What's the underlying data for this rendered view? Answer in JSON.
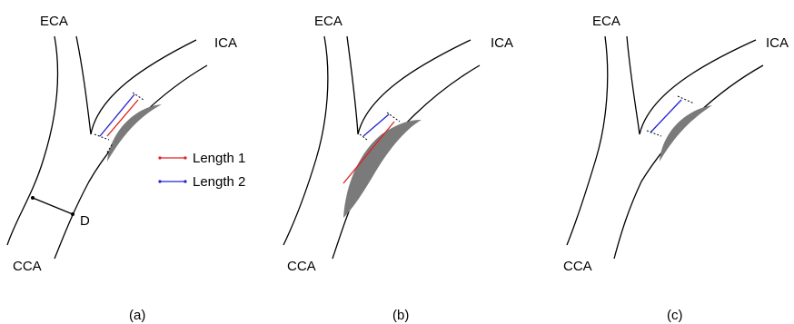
{
  "panels": [
    {
      "caption": "(a)",
      "labels": {
        "eca": "ECA",
        "ica": "ICA",
        "cca": "CCA",
        "d": "D"
      }
    },
    {
      "caption": "(b)",
      "labels": {
        "eca": "ECA",
        "ica": "ICA",
        "cca": "CCA"
      }
    },
    {
      "caption": "(c)",
      "labels": {
        "eca": "ECA",
        "ica": "ICA",
        "cca": "CCA"
      }
    }
  ],
  "legend": {
    "items": [
      {
        "label": "Length 1",
        "color": "#e02020"
      },
      {
        "label": "Length 2",
        "color": "#2020d0"
      }
    ]
  }
}
